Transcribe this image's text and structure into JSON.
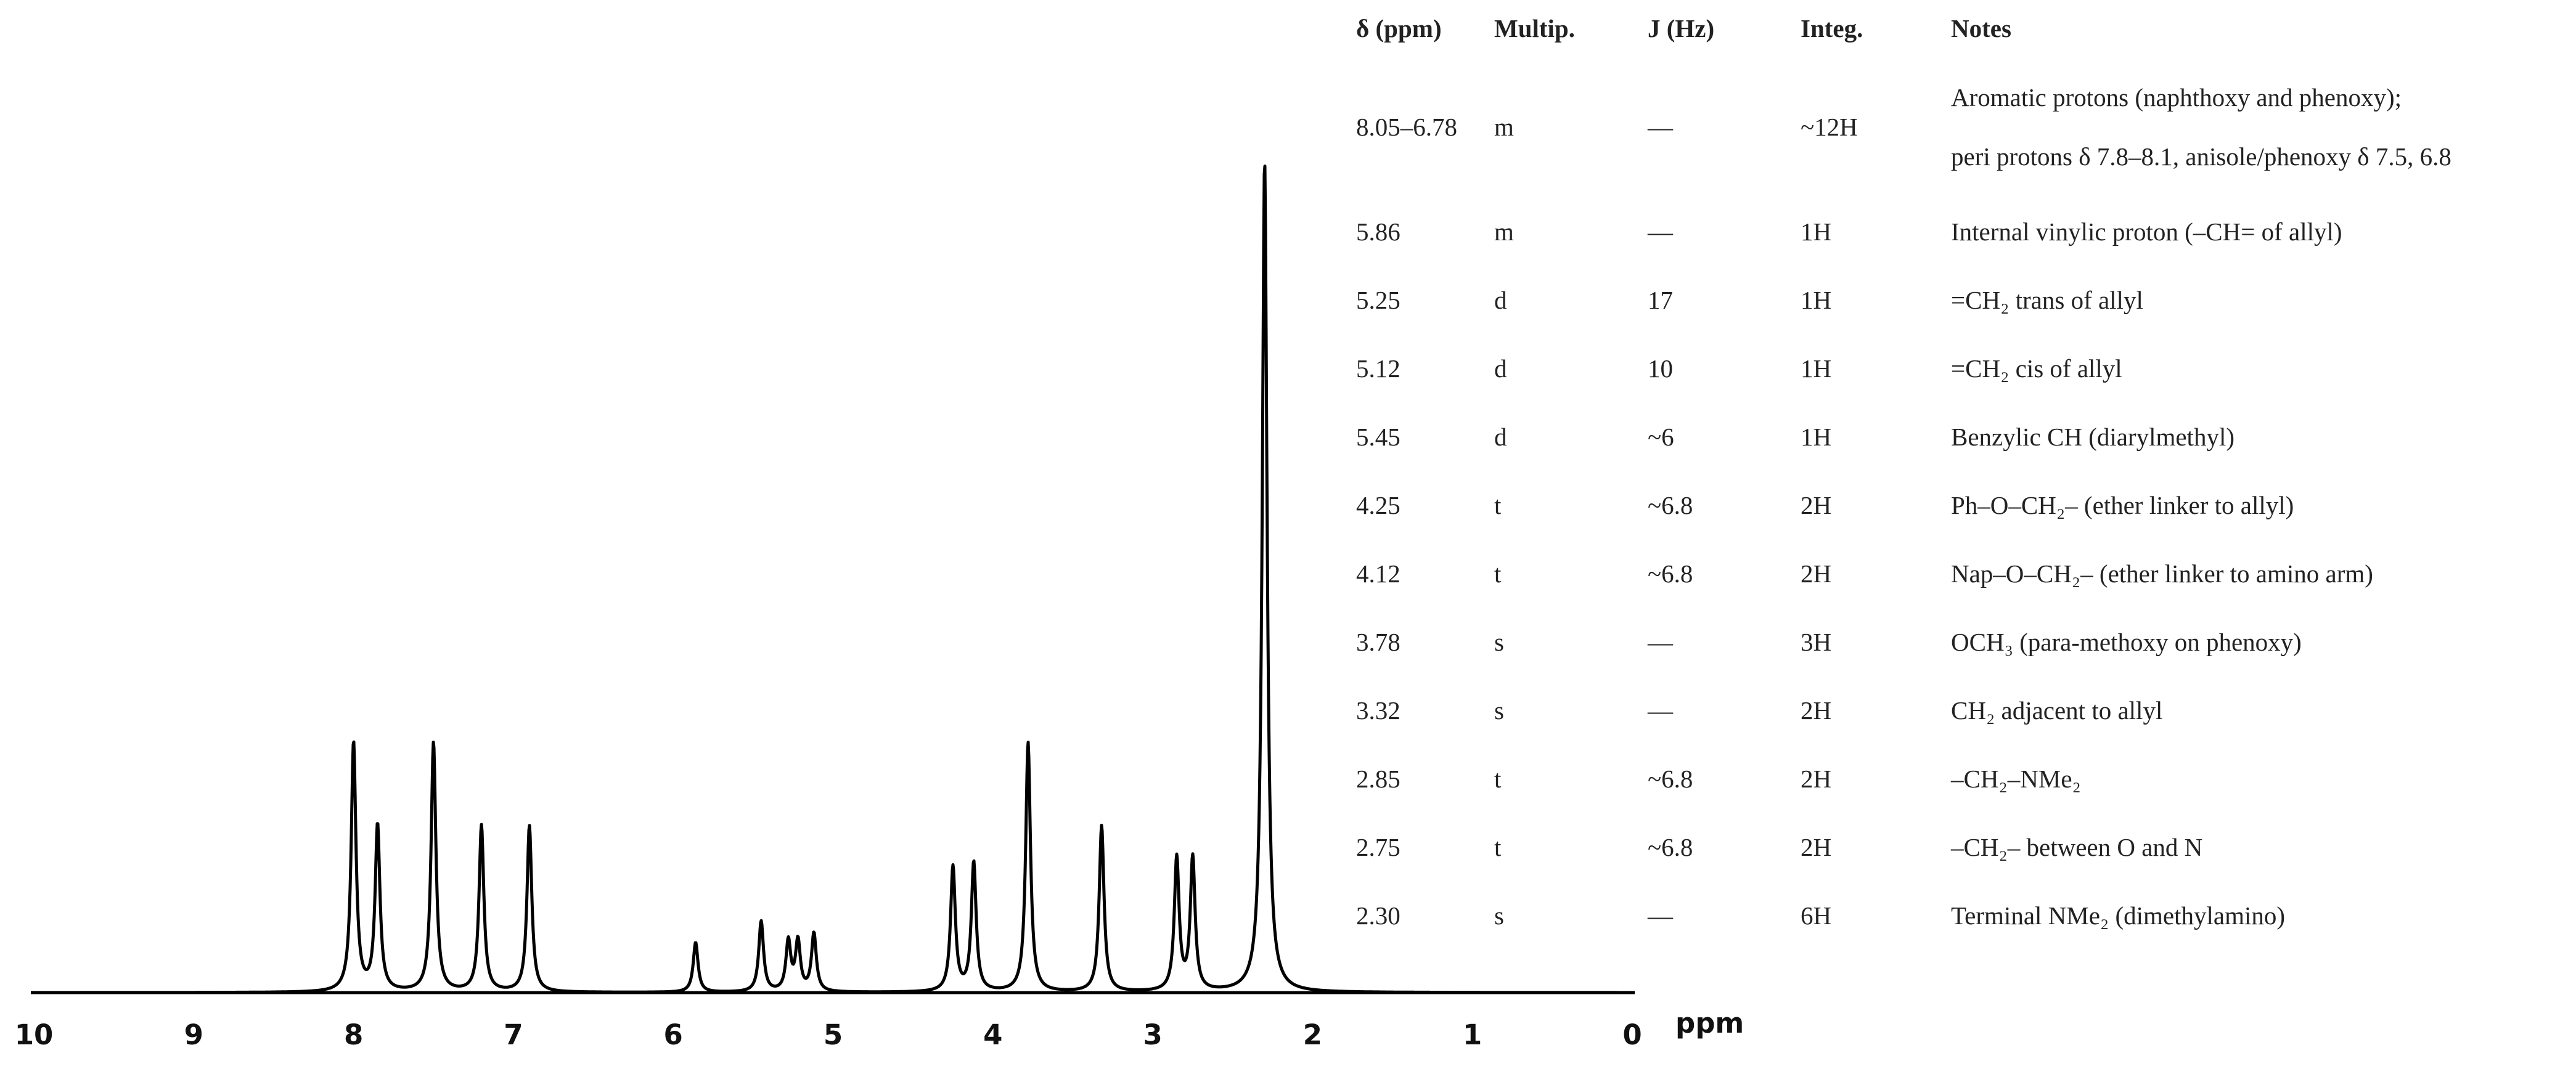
{
  "chart_data": {
    "type": "line",
    "title": "",
    "xlabel": "ppm",
    "ylabel": "",
    "xlim": [
      10,
      0
    ],
    "x_reversed": true,
    "grid": false,
    "x_ticks": [
      "10",
      "9",
      "8",
      "7",
      "6",
      "5",
      "4",
      "3",
      "2",
      "1",
      "0"
    ],
    "peaks": [
      {
        "shift": 8.0,
        "height": 0.3
      },
      {
        "shift": 7.85,
        "height": 0.2
      },
      {
        "shift": 7.5,
        "height": 0.3
      },
      {
        "shift": 7.2,
        "height": 0.2
      },
      {
        "shift": 6.9,
        "height": 0.2
      },
      {
        "shift": 5.86,
        "height": 0.06
      },
      {
        "shift": 5.45,
        "height": 0.085
      },
      {
        "shift": 5.28,
        "height": 0.06
      },
      {
        "shift": 5.22,
        "height": 0.06
      },
      {
        "shift": 5.12,
        "height": 0.07
      },
      {
        "shift": 4.25,
        "height": 0.15
      },
      {
        "shift": 4.12,
        "height": 0.155
      },
      {
        "shift": 3.78,
        "height": 0.3
      },
      {
        "shift": 3.32,
        "height": 0.2
      },
      {
        "shift": 2.85,
        "height": 0.16
      },
      {
        "shift": 2.75,
        "height": 0.16
      },
      {
        "shift": 2.3,
        "height": 1.0
      }
    ],
    "line_color": "#000000"
  },
  "table": {
    "headers": {
      "shift": "δ (ppm)",
      "mult": "Multip.",
      "j": "J (Hz)",
      "integ": "Integ.",
      "notes": "Notes"
    },
    "rows": [
      {
        "shift": "8.05–6.78",
        "mult": "m",
        "j": "—",
        "integ": "~12H",
        "notes": [
          "Aromatic protons (naphthoxy and phenoxy);",
          "peri protons δ 7.8–8.1, anisole/phenoxy δ 7.5, 6.8"
        ]
      },
      {
        "shift": "5.86",
        "mult": "m",
        "j": "—",
        "integ": "1H",
        "notes": [
          "Internal vinylic proton (–CH= of allyl)"
        ]
      },
      {
        "shift": "5.25",
        "mult": "d",
        "j": "17",
        "integ": "1H",
        "notes": [
          "=CH₂ trans of allyl"
        ]
      },
      {
        "shift": "5.12",
        "mult": "d",
        "j": "10",
        "integ": "1H",
        "notes": [
          "=CH₂ cis of allyl"
        ]
      },
      {
        "shift": "5.45",
        "mult": "d",
        "j": "~6",
        "integ": "1H",
        "notes": [
          "Benzylic CH (diarylmethyl)"
        ]
      },
      {
        "shift": "4.25",
        "mult": "t",
        "j": "~6.8",
        "integ": "2H",
        "notes": [
          "Ph–O–CH₂– (ether linker to allyl)"
        ]
      },
      {
        "shift": "4.12",
        "mult": "t",
        "j": "~6.8",
        "integ": "2H",
        "notes": [
          "Nap–O–CH₂– (ether linker to amino arm)"
        ]
      },
      {
        "shift": "3.78",
        "mult": "s",
        "j": "—",
        "integ": "3H",
        "notes": [
          "OCH₃ (para-methoxy on phenoxy)"
        ]
      },
      {
        "shift": "3.32",
        "mult": "s",
        "j": "—",
        "integ": "2H",
        "notes": [
          "CH₂ adjacent to allyl"
        ]
      },
      {
        "shift": "2.85",
        "mult": "t",
        "j": "~6.8",
        "integ": "2H",
        "notes": [
          "–CH₂–NMe₂"
        ]
      },
      {
        "shift": "2.75",
        "mult": "t",
        "j": "~6.8",
        "integ": "2H",
        "notes": [
          "–CH₂– between O and N"
        ]
      },
      {
        "shift": "2.30",
        "mult": "s",
        "j": "—",
        "integ": "6H",
        "notes": [
          "Terminal NMe₂ (dimethylamino)"
        ]
      }
    ]
  }
}
